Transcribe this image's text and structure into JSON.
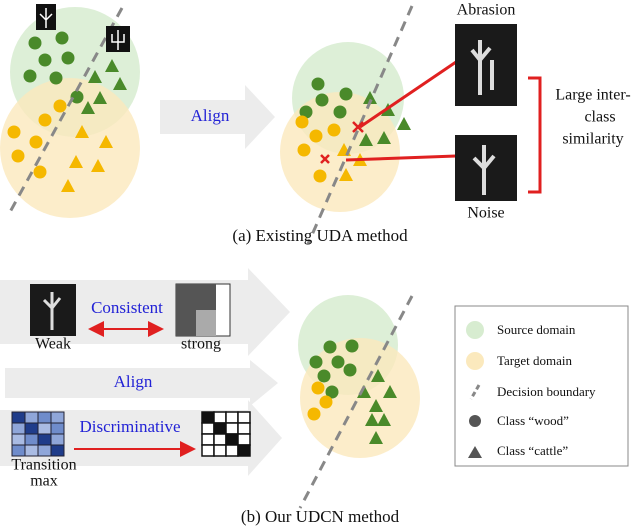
{
  "top": {
    "align": "Align",
    "abrasion": "Abrasion",
    "noise": "Noise",
    "similarity": [
      "Large inter-",
      "class",
      "similarity"
    ],
    "caption": "(a) Existing UDA method"
  },
  "bottom": {
    "weak": "Weak",
    "strong": "strong",
    "consistent": "Consistent",
    "align": "Align",
    "discriminative": "Discriminative",
    "transition": [
      "Transition",
      "max"
    ],
    "caption": "(b) Our UDCN method"
  },
  "legend": {
    "items": [
      "Source domain",
      "Target domain",
      "Decision boundary",
      "Class “wood”",
      "Class “cattle”"
    ]
  }
}
